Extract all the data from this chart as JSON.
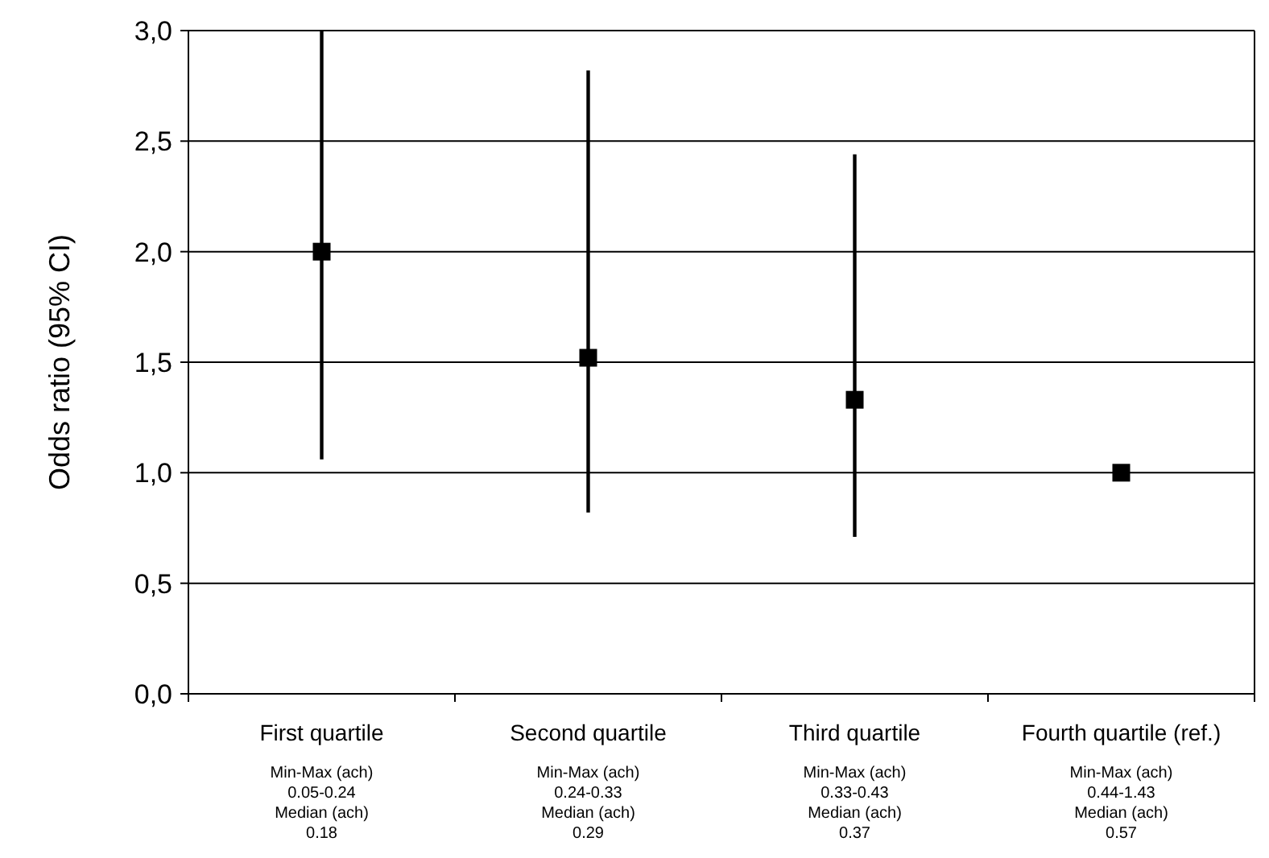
{
  "chart_data": {
    "type": "scatter",
    "ylabel": "Odds ratio (95% CI)",
    "categories": [
      "First quartile",
      "Second quartile",
      "Third quartile",
      "Fourth quartile (ref.)"
    ],
    "values": [
      2.0,
      1.52,
      1.33,
      1.0
    ],
    "errors": [
      [
        1.06,
        3.0
      ],
      [
        0.82,
        2.82
      ],
      [
        0.71,
        2.44
      ],
      null
    ],
    "color": "#000000",
    "marker": "square",
    "grid": "y",
    "ylim": [
      0,
      3
    ],
    "yticks": [
      {
        "value": 0,
        "label": "0,0"
      },
      {
        "value": 0.5,
        "label": "0,5"
      },
      {
        "value": 1,
        "label": "1,0"
      },
      {
        "value": 1.5,
        "label": "1,5"
      },
      {
        "value": 2,
        "label": "2,0"
      },
      {
        "value": 2.5,
        "label": "2,5"
      },
      {
        "value": 3,
        "label": "3,0"
      }
    ],
    "annotations": [
      "Min-Max (ach)\n0.05-0.24\nMedian (ach)\n0.18",
      "Min-Max (ach)\n0.24-0.33\nMedian (ach)\n0.29",
      "Min-Max (ach)\n0.33-0.43\nMedian (ach)\n0.37",
      "Min-Max (ach)\n0.44-1.43\nMedian (ach)\n0.57"
    ]
  }
}
